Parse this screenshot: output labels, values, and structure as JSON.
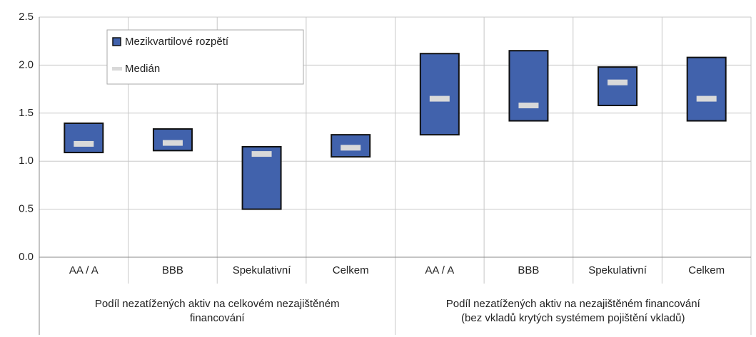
{
  "chart_data": {
    "type": "floating-bar",
    "categories": [
      "AA / A",
      "BBB",
      "Spekulativní",
      "Celkem",
      "AA / A",
      "BBB",
      "Spekulativní",
      "Celkem"
    ],
    "groups": [
      {
        "lines": [
          "Podíl nezatížených aktiv na celkovém nezajištěném",
          "financování"
        ],
        "size": 4
      },
      {
        "lines": [
          "Podíl nezatížených aktiv na nezajištěném financování",
          "(bez vkladů krytých systémem pojištění vkladů)"
        ],
        "size": 4
      }
    ],
    "series": [
      {
        "name": "Mezikvartilové rozpětí",
        "color": "#4162ac",
        "low": [
          1.09,
          1.11,
          0.5,
          1.045,
          1.275,
          1.42,
          1.58,
          1.42
        ],
        "high": [
          1.395,
          1.335,
          1.15,
          1.275,
          2.12,
          2.15,
          1.98,
          2.08
        ]
      },
      {
        "name": "Medián",
        "color": "#d9d9d9",
        "values": [
          1.18,
          1.19,
          1.075,
          1.14,
          1.65,
          1.58,
          1.82,
          1.65
        ]
      }
    ],
    "ylim": [
      0,
      2.5
    ],
    "yticks": [
      {
        "value": 0,
        "label": "0.0"
      },
      {
        "value": 0.5,
        "label": "0.5"
      },
      {
        "value": 1,
        "label": "1.0"
      },
      {
        "value": 1.5,
        "label": "1.5"
      },
      {
        "value": 2,
        "label": "2.0"
      },
      {
        "value": 2.5,
        "label": "2.5"
      }
    ],
    "grid": true
  }
}
